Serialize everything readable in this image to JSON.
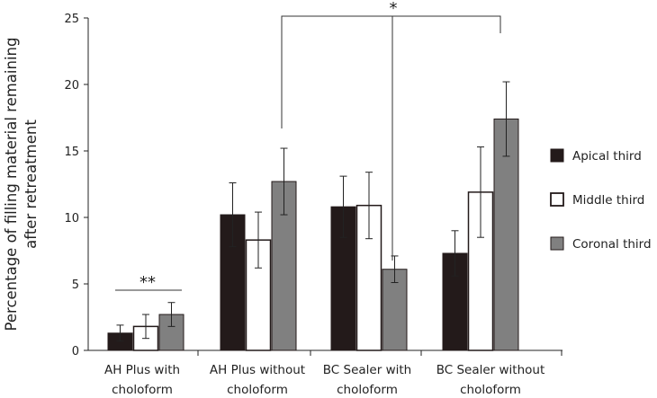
{
  "chart_data": {
    "type": "bar",
    "title": "",
    "xlabel": "",
    "ylabel": "Percentage of filling material remaining after retreatment",
    "ylabel_lines": [
      "Percentage of filling material remaining",
      "after retreatment"
    ],
    "ylim": [
      0,
      25
    ],
    "yticks": [
      0,
      5,
      10,
      15,
      20,
      25
    ],
    "grid": false,
    "legend_position": "right",
    "categories": [
      "AH Plus with choloform",
      "AH Plus without choloform",
      "BC Sealer with choloform",
      "BC Sealer without choloform"
    ],
    "category_label_lines": [
      [
        "AH Plus with",
        "choloform"
      ],
      [
        "AH Plus without",
        "choloform"
      ],
      [
        "BC Sealer with",
        "choloform"
      ],
      [
        "BC Sealer without",
        "choloform"
      ]
    ],
    "series": [
      {
        "name": "Apical third",
        "color": "#231a1a",
        "values": [
          1.3,
          10.2,
          10.8,
          7.3
        ],
        "errors": [
          0.6,
          2.4,
          2.3,
          1.7
        ]
      },
      {
        "name": "Middle third",
        "color": "#ffffff",
        "values": [
          1.8,
          8.3,
          10.9,
          11.9
        ],
        "errors": [
          0.9,
          2.1,
          2.5,
          3.4
        ]
      },
      {
        "name": "Coronal third",
        "color": "#808080",
        "values": [
          2.7,
          12.7,
          6.1,
          17.4
        ],
        "errors": [
          0.9,
          2.5,
          1.0,
          2.8
        ]
      }
    ],
    "annotations": {
      "double_star": "**",
      "single_star": "*"
    }
  }
}
